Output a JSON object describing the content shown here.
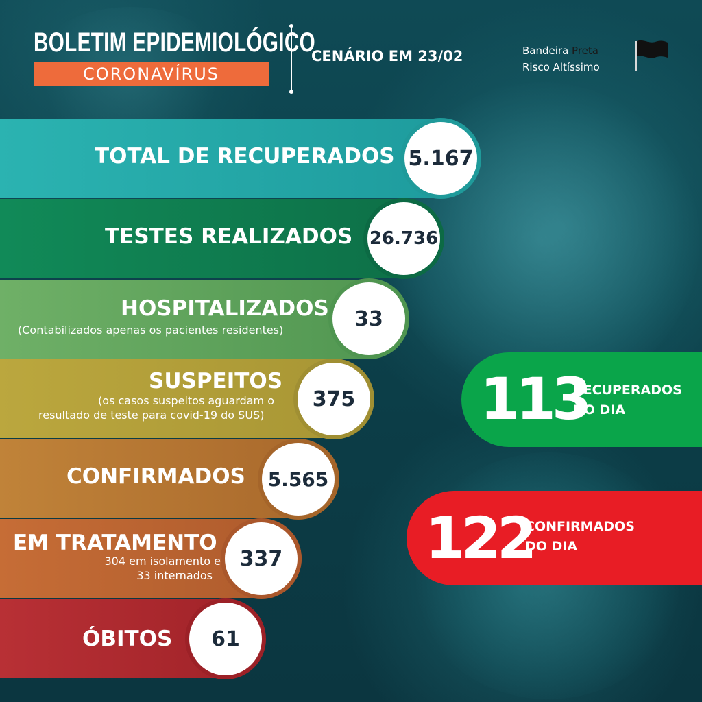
{
  "header": {
    "title": "BOLETIM EPIDEMIOLÓGICO",
    "subtitle": "CORONAVÍRUS",
    "scenario": "CENÁRIO EM 23/02",
    "flag_line1_prefix": "Bandeira ",
    "flag_line1_color": "Preta",
    "flag_line2": "Risco Altíssimo"
  },
  "stats": [
    {
      "label": "TOTAL DE RECUPERADOS",
      "value": "5.167",
      "note": ""
    },
    {
      "label": "TESTES REALIZADOS",
      "value": "26.736",
      "note": ""
    },
    {
      "label": "HOSPITALIZADOS",
      "value": "33",
      "note": "(Contabilizados apenas os pacientes residentes)"
    },
    {
      "label": "SUSPEITOS",
      "value": "375",
      "note_line1": "(os casos suspeitos aguardam o",
      "note_line2": "resultado de teste para covid-19 do SUS)"
    },
    {
      "label": "CONFIRMADOS",
      "value": "5.565",
      "note": ""
    },
    {
      "label": "EM TRATAMENTO",
      "value": "337",
      "note_line1": "304 em isolamento e",
      "note_line2": "33 internados"
    },
    {
      "label": "ÓBITOS",
      "value": "61",
      "note": ""
    }
  ],
  "daily": [
    {
      "value": "113",
      "label_line1": "RECUPERADOS",
      "label_line2": "DO DIA",
      "color": "#0aa54a"
    },
    {
      "value": "122",
      "label_line1": "CONFIRMADOS",
      "label_line2": "DO DIA",
      "color": "#e81d25"
    }
  ],
  "colors": {
    "header_band": "#ee6b3b",
    "recuperados": "#27a9a8",
    "testes": "#0f7a4f",
    "hospitalizados": "#63a55c",
    "suspeitos": "#b8a83b",
    "confirmados": "#b5742f",
    "tratamento": "#c46a34",
    "obitos": "#b3292f"
  }
}
